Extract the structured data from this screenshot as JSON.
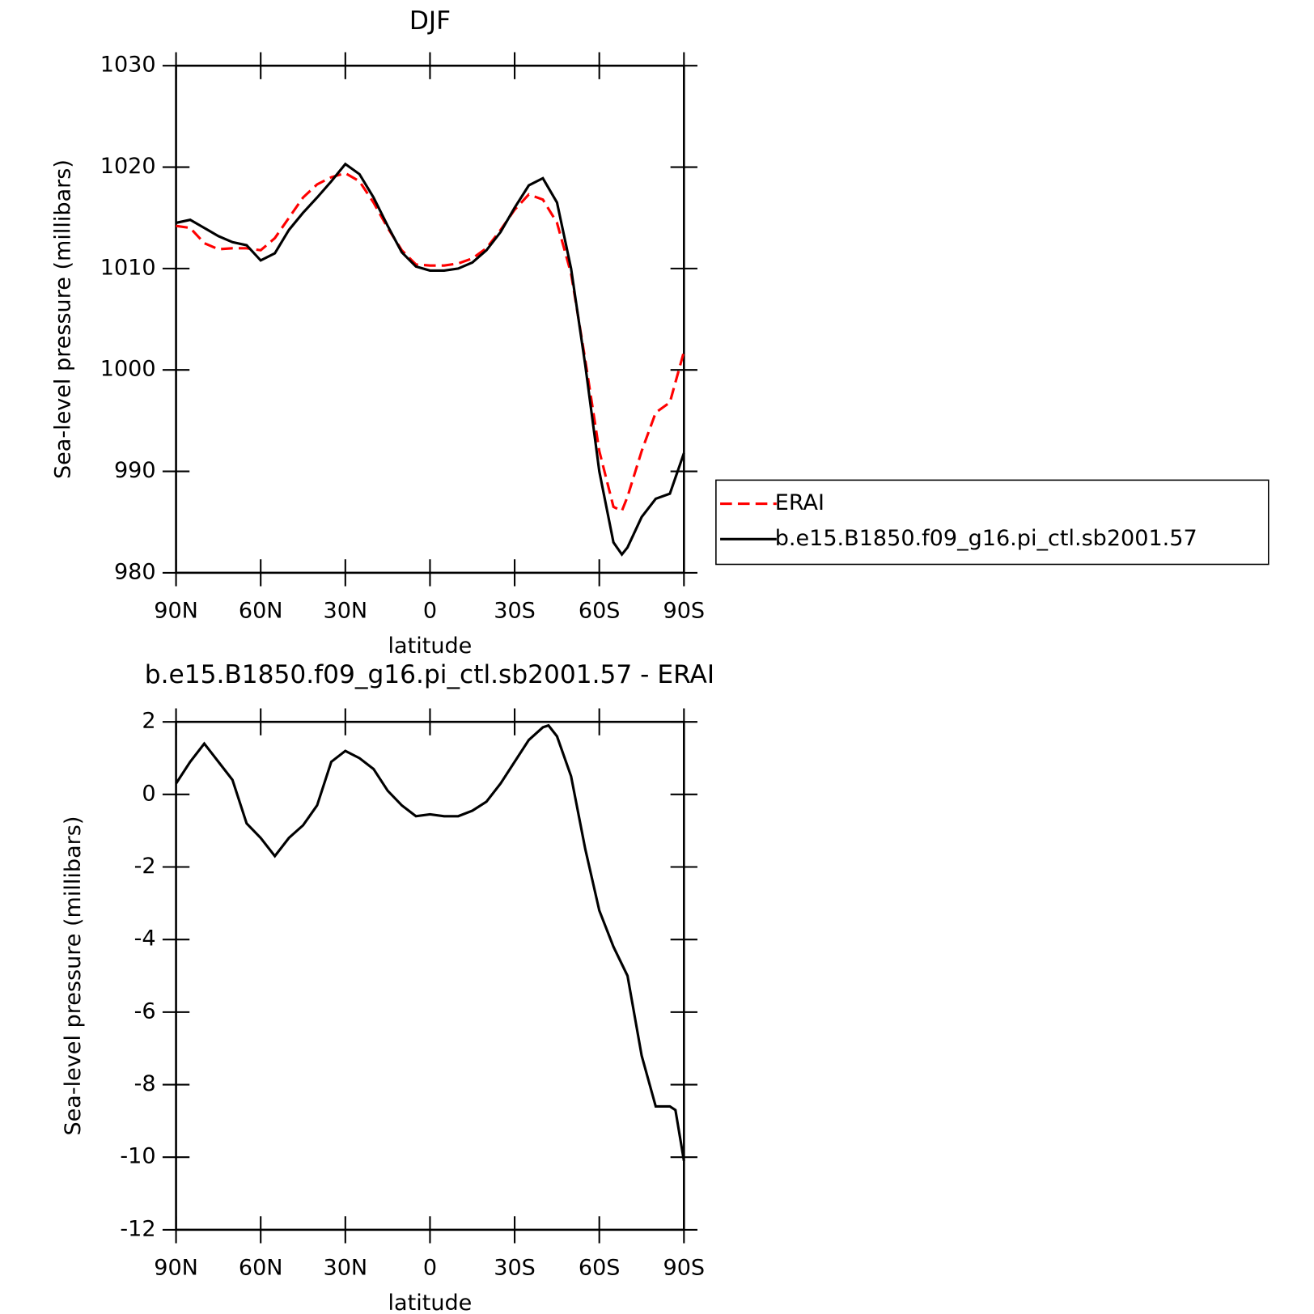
{
  "chart_data": [
    {
      "type": "line",
      "title": "DJF",
      "xlabel": "latitude",
      "ylabel": "Sea-level pressure (millibars)",
      "x": [
        90,
        85,
        80,
        75,
        70,
        65,
        60,
        55,
        50,
        45,
        40,
        35,
        30,
        25,
        20,
        15,
        10,
        5,
        0,
        -5,
        -10,
        -15,
        -20,
        -25,
        -30,
        -35,
        -40,
        -45,
        -50,
        -55,
        -60,
        -65,
        -68,
        -70,
        -75,
        -80,
        -85,
        -90
      ],
      "series": [
        {
          "name": "ERAI",
          "color": "#ff0000",
          "dash": true,
          "values": [
            1014.2,
            1014.0,
            1012.5,
            1011.9,
            1012.0,
            1012.0,
            1011.8,
            1013.0,
            1015.0,
            1017.0,
            1018.3,
            1019.0,
            1019.4,
            1018.6,
            1016.5,
            1014.0,
            1011.8,
            1010.4,
            1010.3,
            1010.3,
            1010.5,
            1011.0,
            1012.0,
            1013.8,
            1015.8,
            1017.3,
            1016.8,
            1014.5,
            1009.5,
            1001.0,
            992.0,
            986.5,
            986.1,
            987.5,
            992.0,
            995.8,
            996.8,
            1001.8
          ]
        },
        {
          "name": "b.e15.B1850.f09_g16.pi_ctl.sb2001.57",
          "color": "#000000",
          "dash": false,
          "values": [
            1014.5,
            1014.8,
            1014.0,
            1013.2,
            1012.6,
            1012.3,
            1010.8,
            1011.5,
            1013.8,
            1015.5,
            1017.0,
            1018.6,
            1020.3,
            1019.3,
            1017.0,
            1014.2,
            1011.6,
            1010.2,
            1009.8,
            1009.8,
            1010.0,
            1010.6,
            1011.8,
            1013.6,
            1016.0,
            1018.2,
            1018.9,
            1016.5,
            1010.0,
            1000.5,
            990.0,
            983.0,
            981.8,
            982.5,
            985.5,
            987.3,
            987.8,
            991.8
          ]
        }
      ],
      "xlim": [
        90,
        -90
      ],
      "xticks": [
        {
          "value": 90,
          "label": "90N"
        },
        {
          "value": 60,
          "label": "60N"
        },
        {
          "value": 30,
          "label": "30N"
        },
        0,
        {
          "value": -30,
          "label": "30S"
        },
        {
          "value": -60,
          "label": "60S"
        },
        {
          "value": -90,
          "label": "90S"
        }
      ],
      "ylim": [
        980,
        1030
      ],
      "yticks": [
        980,
        990,
        1000,
        1010,
        1020,
        1030
      ],
      "legend": "right"
    },
    {
      "type": "line",
      "title": "b.e15.B1850.f09_g16.pi_ctl.sb2001.57 - ERAI",
      "xlabel": "latitude",
      "ylabel": "Sea-level pressure (millibars)",
      "x": [
        90,
        85,
        80,
        75,
        70,
        65,
        60,
        55,
        50,
        45,
        40,
        35,
        30,
        25,
        20,
        15,
        10,
        5,
        0,
        -5,
        -10,
        -15,
        -20,
        -25,
        -30,
        -35,
        -40,
        -42,
        -45,
        -50,
        -55,
        -60,
        -65,
        -70,
        -75,
        -80,
        -85,
        -87,
        -90
      ],
      "series": [
        {
          "color": "#000000",
          "dash": false,
          "values": [
            0.3,
            0.9,
            1.4,
            0.9,
            0.4,
            -0.8,
            -1.2,
            -1.7,
            -1.2,
            -0.85,
            -0.3,
            0.9,
            1.2,
            1.0,
            0.7,
            0.1,
            -0.3,
            -0.6,
            -0.55,
            -0.6,
            -0.6,
            -0.45,
            -0.2,
            0.3,
            0.9,
            1.5,
            1.85,
            1.9,
            1.6,
            0.5,
            -1.5,
            -3.2,
            -4.2,
            -5.0,
            -7.2,
            -8.6,
            -8.6,
            -8.7,
            -10.1
          ]
        }
      ],
      "xlim": [
        90,
        -90
      ],
      "xticks": [
        {
          "value": 90,
          "label": "90N"
        },
        {
          "value": 60,
          "label": "60N"
        },
        {
          "value": 30,
          "label": "30N"
        },
        0,
        {
          "value": -30,
          "label": "30S"
        },
        {
          "value": -60,
          "label": "60S"
        },
        {
          "value": -90,
          "label": "90S"
        }
      ],
      "ylim": [
        -12,
        2
      ],
      "yticks": [
        -12,
        -10,
        -8,
        -6,
        -4,
        -2,
        0,
        2
      ]
    }
  ]
}
